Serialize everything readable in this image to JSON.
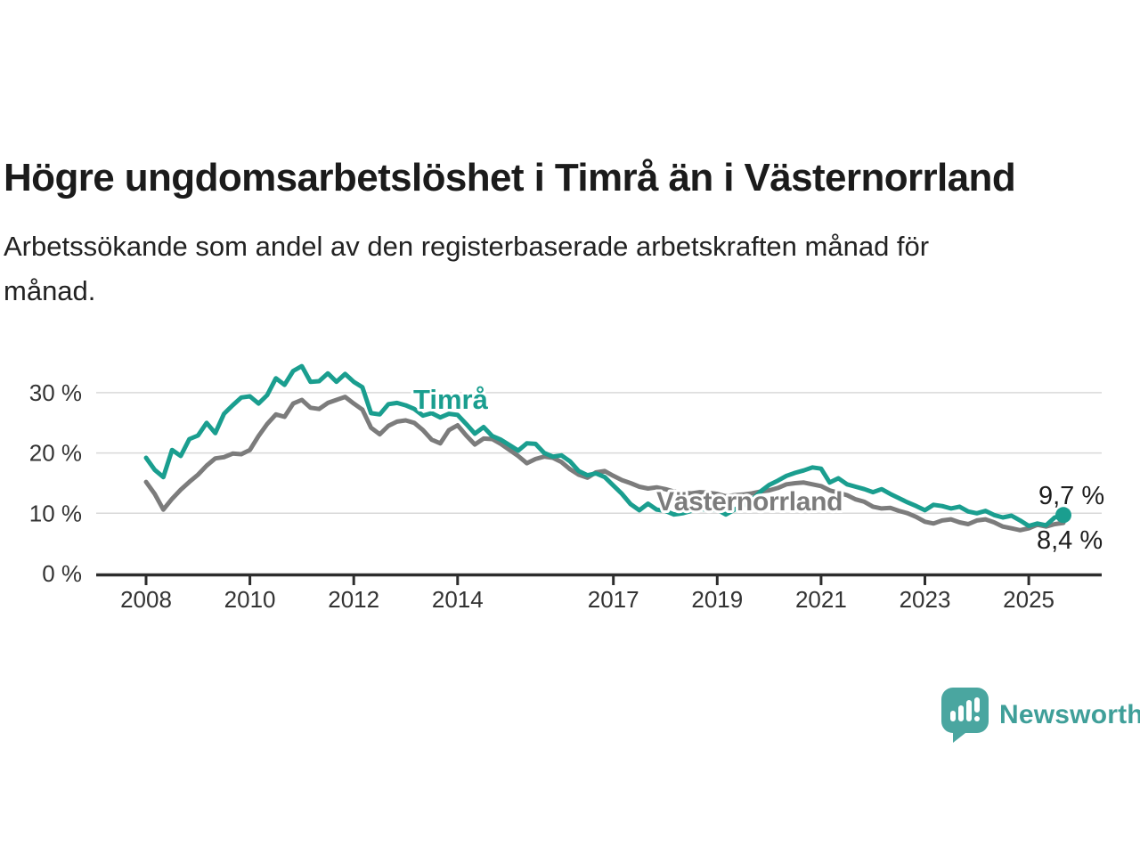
{
  "page": {
    "title": "Högre ungdomsarbetslöshet i Timrå än i Västernorrland",
    "subtitle_lines": [
      "Arbetssökande som andel av den registerbaserade arbetskraften månad för",
      "månad."
    ]
  },
  "branding": {
    "logo_icon": "bar-chart-speech-bubble",
    "logo_text": "Newsworthy",
    "logo_color": "#4aa6a0",
    "logo_text_color": "#3f9f99"
  },
  "chart_data": {
    "type": "line",
    "title": "Högre ungdomsarbetslöshet i Timrå än i Västernorrland",
    "subtitle": "Arbetssökande som andel av den registerbaserade arbetskraften månad för månad.",
    "unit": "%",
    "grid": true,
    "legend_position": "inline-labels-on-lines",
    "x_axis": {
      "tick_years": [
        2008,
        2010,
        2012,
        2014,
        2017,
        2019,
        2021,
        2023,
        2025
      ],
      "tick_labels": [
        "2008",
        "2010",
        "2012",
        "2014",
        "2017",
        "2019",
        "2021",
        "2023",
        "2025"
      ],
      "range": [
        2008,
        2025.67
      ]
    },
    "y_axis": {
      "tick_values": [
        0,
        10,
        20,
        30
      ],
      "tick_labels": [
        "0 %",
        "10 %",
        "20 %",
        "30 %"
      ],
      "range": [
        0,
        36
      ]
    },
    "start_year": 2008.0,
    "step_years": 0.166667,
    "sampling_note": "values estimated from plot, two-month resolution",
    "series": [
      {
        "name": "Timrå",
        "color": "#1a9e8f",
        "end_label": "9,7 %",
        "end_value": 9.7,
        "end_dot": true,
        "values": [
          19.2,
          17.2,
          16.0,
          20.5,
          19.5,
          22.3,
          22.9,
          25.0,
          23.3,
          26.5,
          27.9,
          29.2,
          29.4,
          28.2,
          29.6,
          32.4,
          31.3,
          33.6,
          34.4,
          31.8,
          31.9,
          33.2,
          31.8,
          33.1,
          31.8,
          30.9,
          26.6,
          26.4,
          28.1,
          28.3,
          27.9,
          27.3,
          26.2,
          26.6,
          25.9,
          26.5,
          26.3,
          24.8,
          23.2,
          24.3,
          22.8,
          22.2,
          21.3,
          20.4,
          21.6,
          21.5,
          20.0,
          19.4,
          19.6,
          18.6,
          17.0,
          16.3,
          16.6,
          16.0,
          14.6,
          13.2,
          11.5,
          10.5,
          11.6,
          10.6,
          10.4,
          9.8,
          10.0,
          10.4,
          10.8,
          10.5,
          10.6,
          9.8,
          10.6,
          11.3,
          12.2,
          13.6,
          14.7,
          15.4,
          16.2,
          16.7,
          17.1,
          17.6,
          17.4,
          15.1,
          15.8,
          14.8,
          14.4,
          14.0,
          13.5,
          14.0,
          13.2,
          12.5,
          11.8,
          11.2,
          10.5,
          11.4,
          11.2,
          10.8,
          11.1,
          10.3,
          10.0,
          10.4,
          9.7,
          9.3,
          9.6,
          8.8,
          7.9,
          8.3,
          8.0,
          9.3,
          9.7
        ]
      },
      {
        "name": "Västernorrland",
        "color": "#7c7c7c",
        "end_label": "8,4 %",
        "end_value": 8.4,
        "end_dot": false,
        "values": [
          15.2,
          13.2,
          10.6,
          12.4,
          13.9,
          15.2,
          16.4,
          17.9,
          19.1,
          19.3,
          19.9,
          19.8,
          20.5,
          22.8,
          24.8,
          26.4,
          26.0,
          28.2,
          28.8,
          27.5,
          27.3,
          28.3,
          28.8,
          29.3,
          28.2,
          27.2,
          24.2,
          23.1,
          24.5,
          25.2,
          25.4,
          25.0,
          23.8,
          22.2,
          21.6,
          23.8,
          24.6,
          22.9,
          21.4,
          22.4,
          22.3,
          21.5,
          20.5,
          19.5,
          18.3,
          19.0,
          19.4,
          19.2,
          18.5,
          17.3,
          16.4,
          15.9,
          16.8,
          17.0,
          16.2,
          15.5,
          15.0,
          14.4,
          14.1,
          14.3,
          14.0,
          13.6,
          13.4,
          13.3,
          13.5,
          13.4,
          13.2,
          12.8,
          13.0,
          13.1,
          13.3,
          13.6,
          13.8,
          14.2,
          14.8,
          15.0,
          15.1,
          14.8,
          14.5,
          13.8,
          13.4,
          13.0,
          12.3,
          11.9,
          11.1,
          10.8,
          10.9,
          10.4,
          10.0,
          9.4,
          8.6,
          8.3,
          8.8,
          9.0,
          8.5,
          8.2,
          8.8,
          9.0,
          8.5,
          7.8,
          7.5,
          7.2,
          7.5,
          8.1,
          7.8,
          8.2,
          8.4
        ]
      }
    ],
    "styles": {
      "grid_color": "#d9d9d9",
      "axis_color": "#2d2d2d",
      "tick_text_color": "#333333",
      "annotation_text_color": "#1d1d1d"
    }
  }
}
